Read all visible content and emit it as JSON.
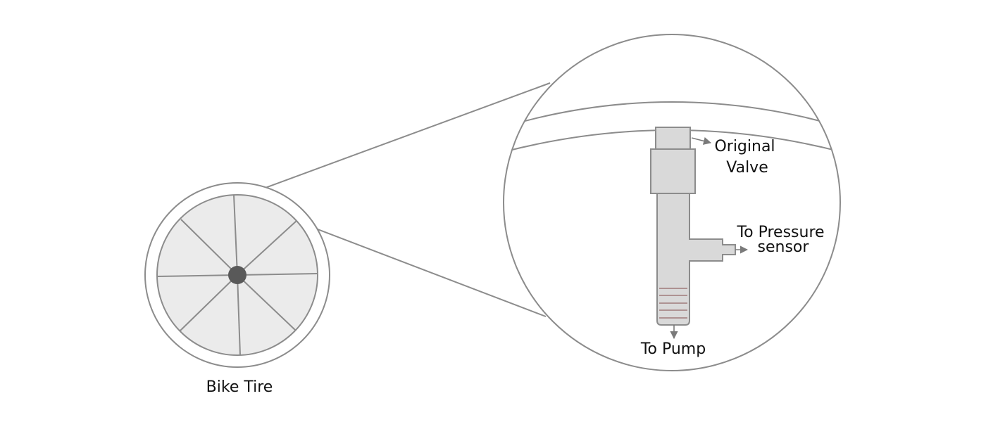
{
  "labels": {
    "tire": "Bike Tire",
    "valve_line1": "Original",
    "valve_line2": "Valve",
    "sensor_line1": "To Pressure",
    "sensor_line2": "sensor",
    "pump": "To Pump"
  },
  "colors": {
    "outline": "#8c8c8c",
    "fill": "#d9d9d9",
    "wheel_fill": "#ebebeb",
    "hub": "#595959",
    "thread": "#a07a7a",
    "text": "#111111"
  },
  "icons": [
    "arrow-right-icon",
    "arrow-down-icon"
  ]
}
